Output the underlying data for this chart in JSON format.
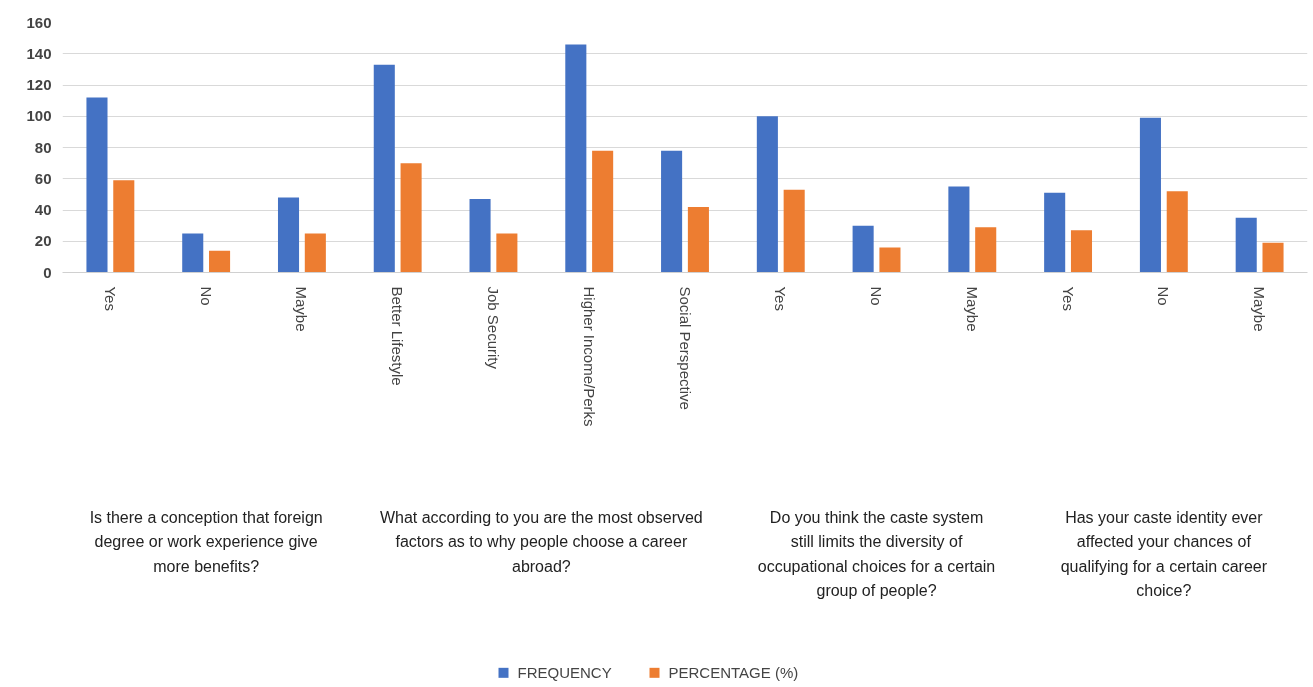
{
  "chart_data": {
    "type": "bar",
    "categories": [
      "Yes",
      "No",
      "Maybe",
      "Better Lifestyle",
      "Job Security",
      "Higher Income/Perks",
      "Social Perspective",
      "Yes",
      "No",
      "Maybe",
      "Yes",
      "No",
      "Maybe"
    ],
    "series": [
      {
        "name": "FREQUENCY",
        "color": "#4472c4",
        "values": [
          112,
          25,
          48,
          133,
          47,
          146,
          78,
          100,
          30,
          55,
          51,
          99,
          35
        ]
      },
      {
        "name": "PERCENTAGE (%)",
        "color": "#ed7d31",
        "values": [
          59,
          14,
          25,
          70,
          25,
          78,
          42,
          53,
          16,
          29,
          27,
          52,
          19
        ]
      }
    ],
    "annotations": [
      "Is there a conception that foreign degree or work experience give more benefits?",
      "What according to you are the most observed factors as to why people choose a career abroad?",
      "Do you think the caste system still limits the diversity of occupational choices for a certain group of people?",
      "Has your caste identity ever affected your chances of qualifying for a certain career choice?"
    ],
    "ylim": [
      0,
      160
    ],
    "yticks": [
      0,
      20,
      40,
      60,
      80,
      100,
      120,
      140,
      160
    ],
    "grid": "y",
    "legend": "bottom"
  }
}
